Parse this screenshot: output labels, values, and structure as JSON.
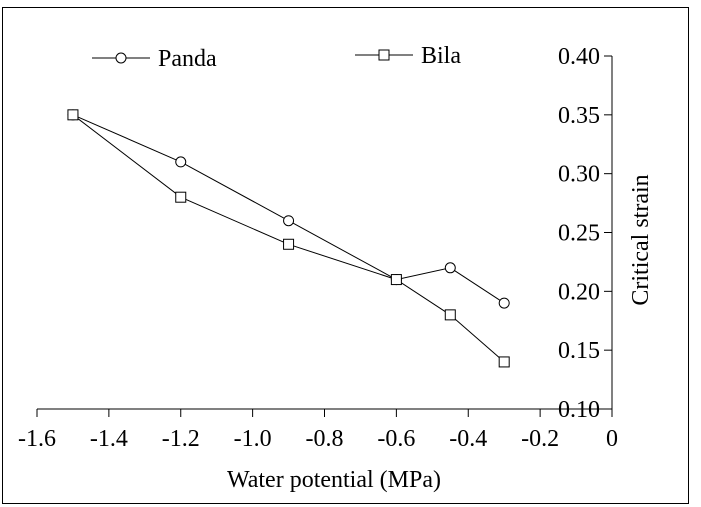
{
  "chart_data": {
    "type": "line",
    "title": "",
    "xlabel": "Water potential (MPa)",
    "ylabel": "Critical strain",
    "xlim": [
      -1.6,
      0
    ],
    "ylim": [
      0.1,
      0.4
    ],
    "x_ticks": [
      -1.6,
      -1.4,
      -1.2,
      -1.0,
      -0.8,
      -0.6,
      -0.4,
      -0.2,
      0
    ],
    "x_tick_labels": [
      "-1.6",
      "-1.4",
      "-1.2",
      "-1.0",
      "-0.8",
      "-0.6",
      "-0.4",
      "-0.2",
      "0"
    ],
    "y_ticks": [
      0.1,
      0.15,
      0.2,
      0.25,
      0.3,
      0.35,
      0.4
    ],
    "y_tick_labels": [
      "0.10",
      "0.15",
      "0.20",
      "0.25",
      "0.30",
      "0.35",
      "0.40"
    ],
    "y_axis_side": "right",
    "grid": false,
    "legend_placement": "top",
    "colors": {
      "line": "#000000",
      "background": "#ffffff"
    },
    "series": [
      {
        "name": "Panda",
        "marker": "circle",
        "x": [
          -1.5,
          -1.2,
          -0.9,
          -0.6,
          -0.45,
          -0.3
        ],
        "y": [
          0.35,
          0.31,
          0.26,
          0.21,
          0.22,
          0.19
        ]
      },
      {
        "name": "Bila",
        "marker": "square",
        "x": [
          -1.5,
          -1.2,
          -0.9,
          -0.6,
          -0.45,
          -0.3
        ],
        "y": [
          0.35,
          0.28,
          0.24,
          0.21,
          0.18,
          0.14
        ]
      }
    ]
  }
}
